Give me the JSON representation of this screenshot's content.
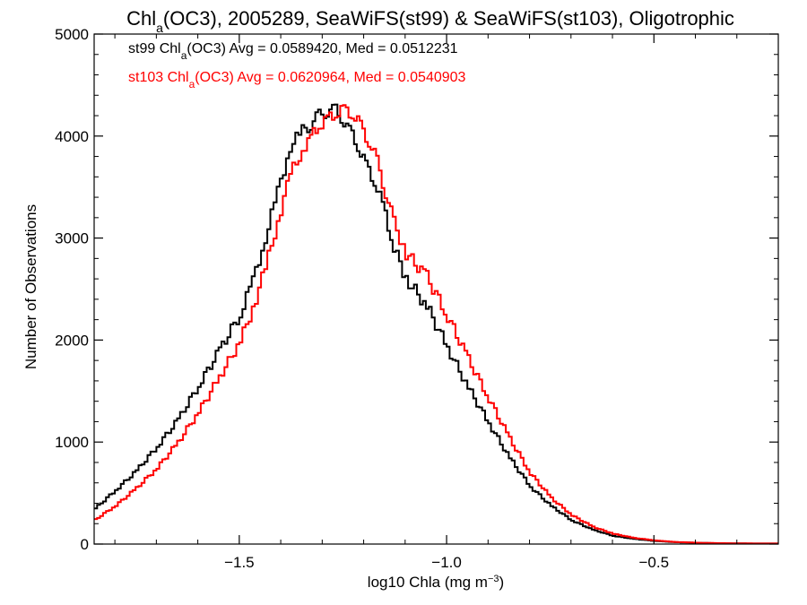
{
  "chart_data": {
    "type": "line",
    "title": {
      "prefix": "Chl",
      "sub": "a",
      "suffix": "(OC3), 2005289, SeaWiFS(st99) & SeaWiFS(st103), Oligotrophic"
    },
    "xlabel": {
      "main": "log10 Chla (mg m",
      "sup": "−3",
      "end": ")"
    },
    "ylabel": "Number of Observations",
    "xlim": [
      -1.85,
      -0.2
    ],
    "ylim": [
      0,
      5000
    ],
    "x_ticks": [
      -1.5,
      -1.0,
      -0.5
    ],
    "x_tick_labels": [
      "−1.5",
      "−1.0",
      "−0.5"
    ],
    "y_ticks": [
      0,
      1000,
      2000,
      3000,
      4000,
      5000
    ],
    "y_tick_labels": [
      "0",
      "1000",
      "2000",
      "3000",
      "4000",
      "5000"
    ],
    "grid": false,
    "series": [
      {
        "name": "st99",
        "color": "#000000",
        "stats": {
          "name_prefix": "st99 Chl",
          "name_sub": "a",
          "text": "(OC3) Avg = 0.0589420, Med = 0.0512231"
        },
        "x": [
          -1.85,
          -1.8,
          -1.75,
          -1.7,
          -1.65,
          -1.6,
          -1.55,
          -1.5,
          -1.47,
          -1.44,
          -1.41,
          -1.38,
          -1.35,
          -1.33,
          -1.31,
          -1.29,
          -1.27,
          -1.25,
          -1.23,
          -1.21,
          -1.19,
          -1.17,
          -1.15,
          -1.13,
          -1.1,
          -1.05,
          -1.0,
          -0.95,
          -0.9,
          -0.85,
          -0.8,
          -0.75,
          -0.7,
          -0.65,
          -0.6,
          -0.55,
          -0.5,
          -0.45,
          -0.4,
          -0.35,
          -0.3,
          -0.25,
          -0.2
        ],
        "values": [
          350,
          530,
          720,
          960,
          1220,
          1560,
          1900,
          2260,
          2580,
          3000,
          3450,
          3900,
          4050,
          4120,
          4200,
          4250,
          4250,
          4150,
          4000,
          3850,
          3650,
          3500,
          3230,
          2900,
          2600,
          2330,
          1920,
          1530,
          1180,
          840,
          560,
          370,
          230,
          140,
          80,
          50,
          30,
          18,
          12,
          8,
          6,
          5,
          5
        ]
      },
      {
        "name": "st103",
        "color": "#ff0000",
        "stats": {
          "name_prefix": "st103 Chl",
          "name_sub": "a",
          "text": "(OC3) Avg = 0.0620964, Med = 0.0540903"
        },
        "x": [
          -1.85,
          -1.8,
          -1.75,
          -1.7,
          -1.65,
          -1.6,
          -1.55,
          -1.5,
          -1.47,
          -1.44,
          -1.41,
          -1.38,
          -1.35,
          -1.33,
          -1.31,
          -1.29,
          -1.27,
          -1.25,
          -1.23,
          -1.21,
          -1.19,
          -1.17,
          -1.15,
          -1.13,
          -1.1,
          -1.05,
          -1.0,
          -0.95,
          -0.9,
          -0.85,
          -0.8,
          -0.75,
          -0.7,
          -0.65,
          -0.6,
          -0.55,
          -0.5,
          -0.45,
          -0.4,
          -0.35,
          -0.3,
          -0.25,
          -0.2
        ],
        "values": [
          240,
          380,
          550,
          750,
          1000,
          1300,
          1640,
          1990,
          2320,
          2700,
          3170,
          3620,
          3870,
          3990,
          4100,
          4170,
          4220,
          4260,
          4220,
          4100,
          3950,
          3750,
          3450,
          3150,
          2850,
          2620,
          2230,
          1810,
          1420,
          1030,
          690,
          450,
          280,
          170,
          100,
          60,
          35,
          20,
          13,
          9,
          7,
          5,
          5
        ]
      }
    ]
  }
}
